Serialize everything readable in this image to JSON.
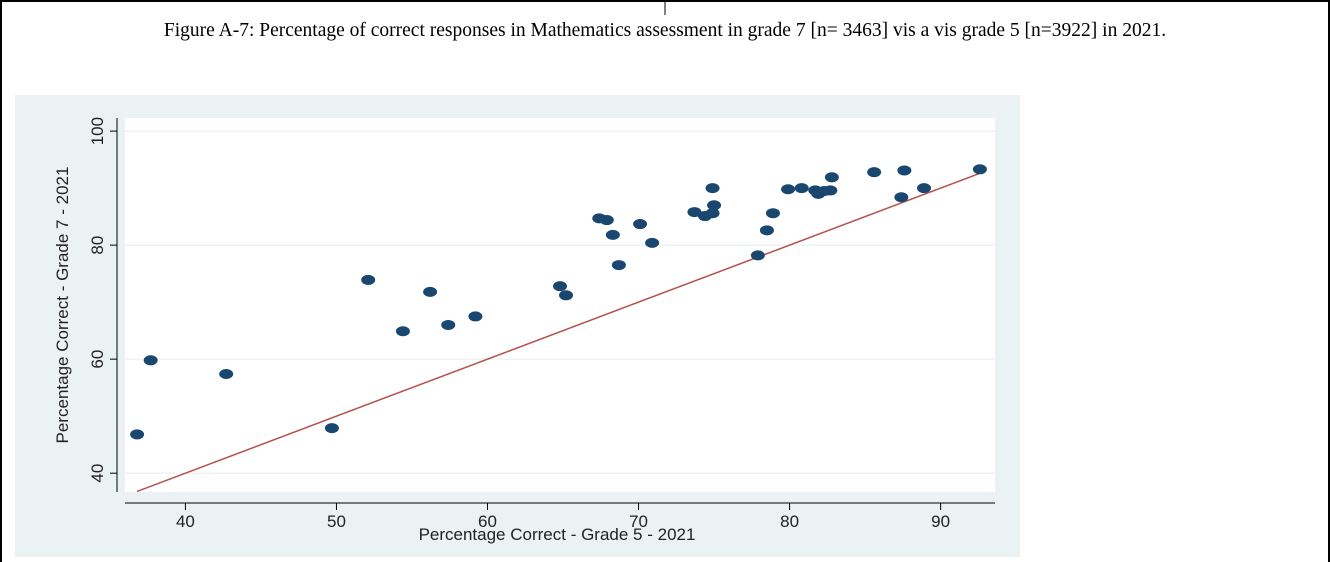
{
  "chart_data": {
    "type": "scatter",
    "title": "Figure A-7: Percentage of correct responses in Mathematics assessment in grade 7 [n= 3463] vis a vis grade 5 [n=3922] in 2021.",
    "x_label": "Percentage Correct - Grade 5 - 2021",
    "y_label": "Percentage Correct - Grade 7 - 2021",
    "x": [
      36.8,
      37.7,
      42.7,
      49.7,
      52.1,
      54.4,
      56.2,
      57.4,
      59.2,
      64.8,
      65.2,
      67.4,
      67.9,
      68.3,
      68.7,
      70.1,
      70.9,
      73.7,
      74.4,
      74.9,
      74.9,
      75.0,
      77.9,
      78.5,
      78.9,
      79.9,
      80.8,
      81.7,
      81.9,
      82.3,
      82.7,
      82.8,
      85.6,
      87.6,
      87.4,
      88.9,
      92.6
    ],
    "y": [
      46.8,
      59.8,
      57.4,
      47.9,
      73.9,
      64.9,
      71.8,
      66.0,
      67.5,
      72.8,
      71.2,
      84.7,
      84.4,
      81.8,
      76.5,
      83.7,
      80.4,
      85.8,
      85.1,
      90.0,
      85.6,
      87.0,
      78.2,
      82.6,
      85.6,
      89.8,
      90.0,
      89.6,
      89.0,
      89.5,
      89.6,
      91.9,
      92.8,
      93.1,
      88.4,
      90.0,
      93.3
    ],
    "color": "#1a476f",
    "line": {
      "x": [
        36.8,
        92.6
      ],
      "y": [
        36.8,
        92.6
      ],
      "color": "#b5514f"
    },
    "xlim": [
      36,
      93.6
    ],
    "ylim": [
      36.7,
      102.3
    ],
    "xticks": [
      40,
      50,
      60,
      70,
      80,
      90
    ],
    "yticks": [
      40,
      60,
      80,
      100
    ],
    "grid": true
  }
}
